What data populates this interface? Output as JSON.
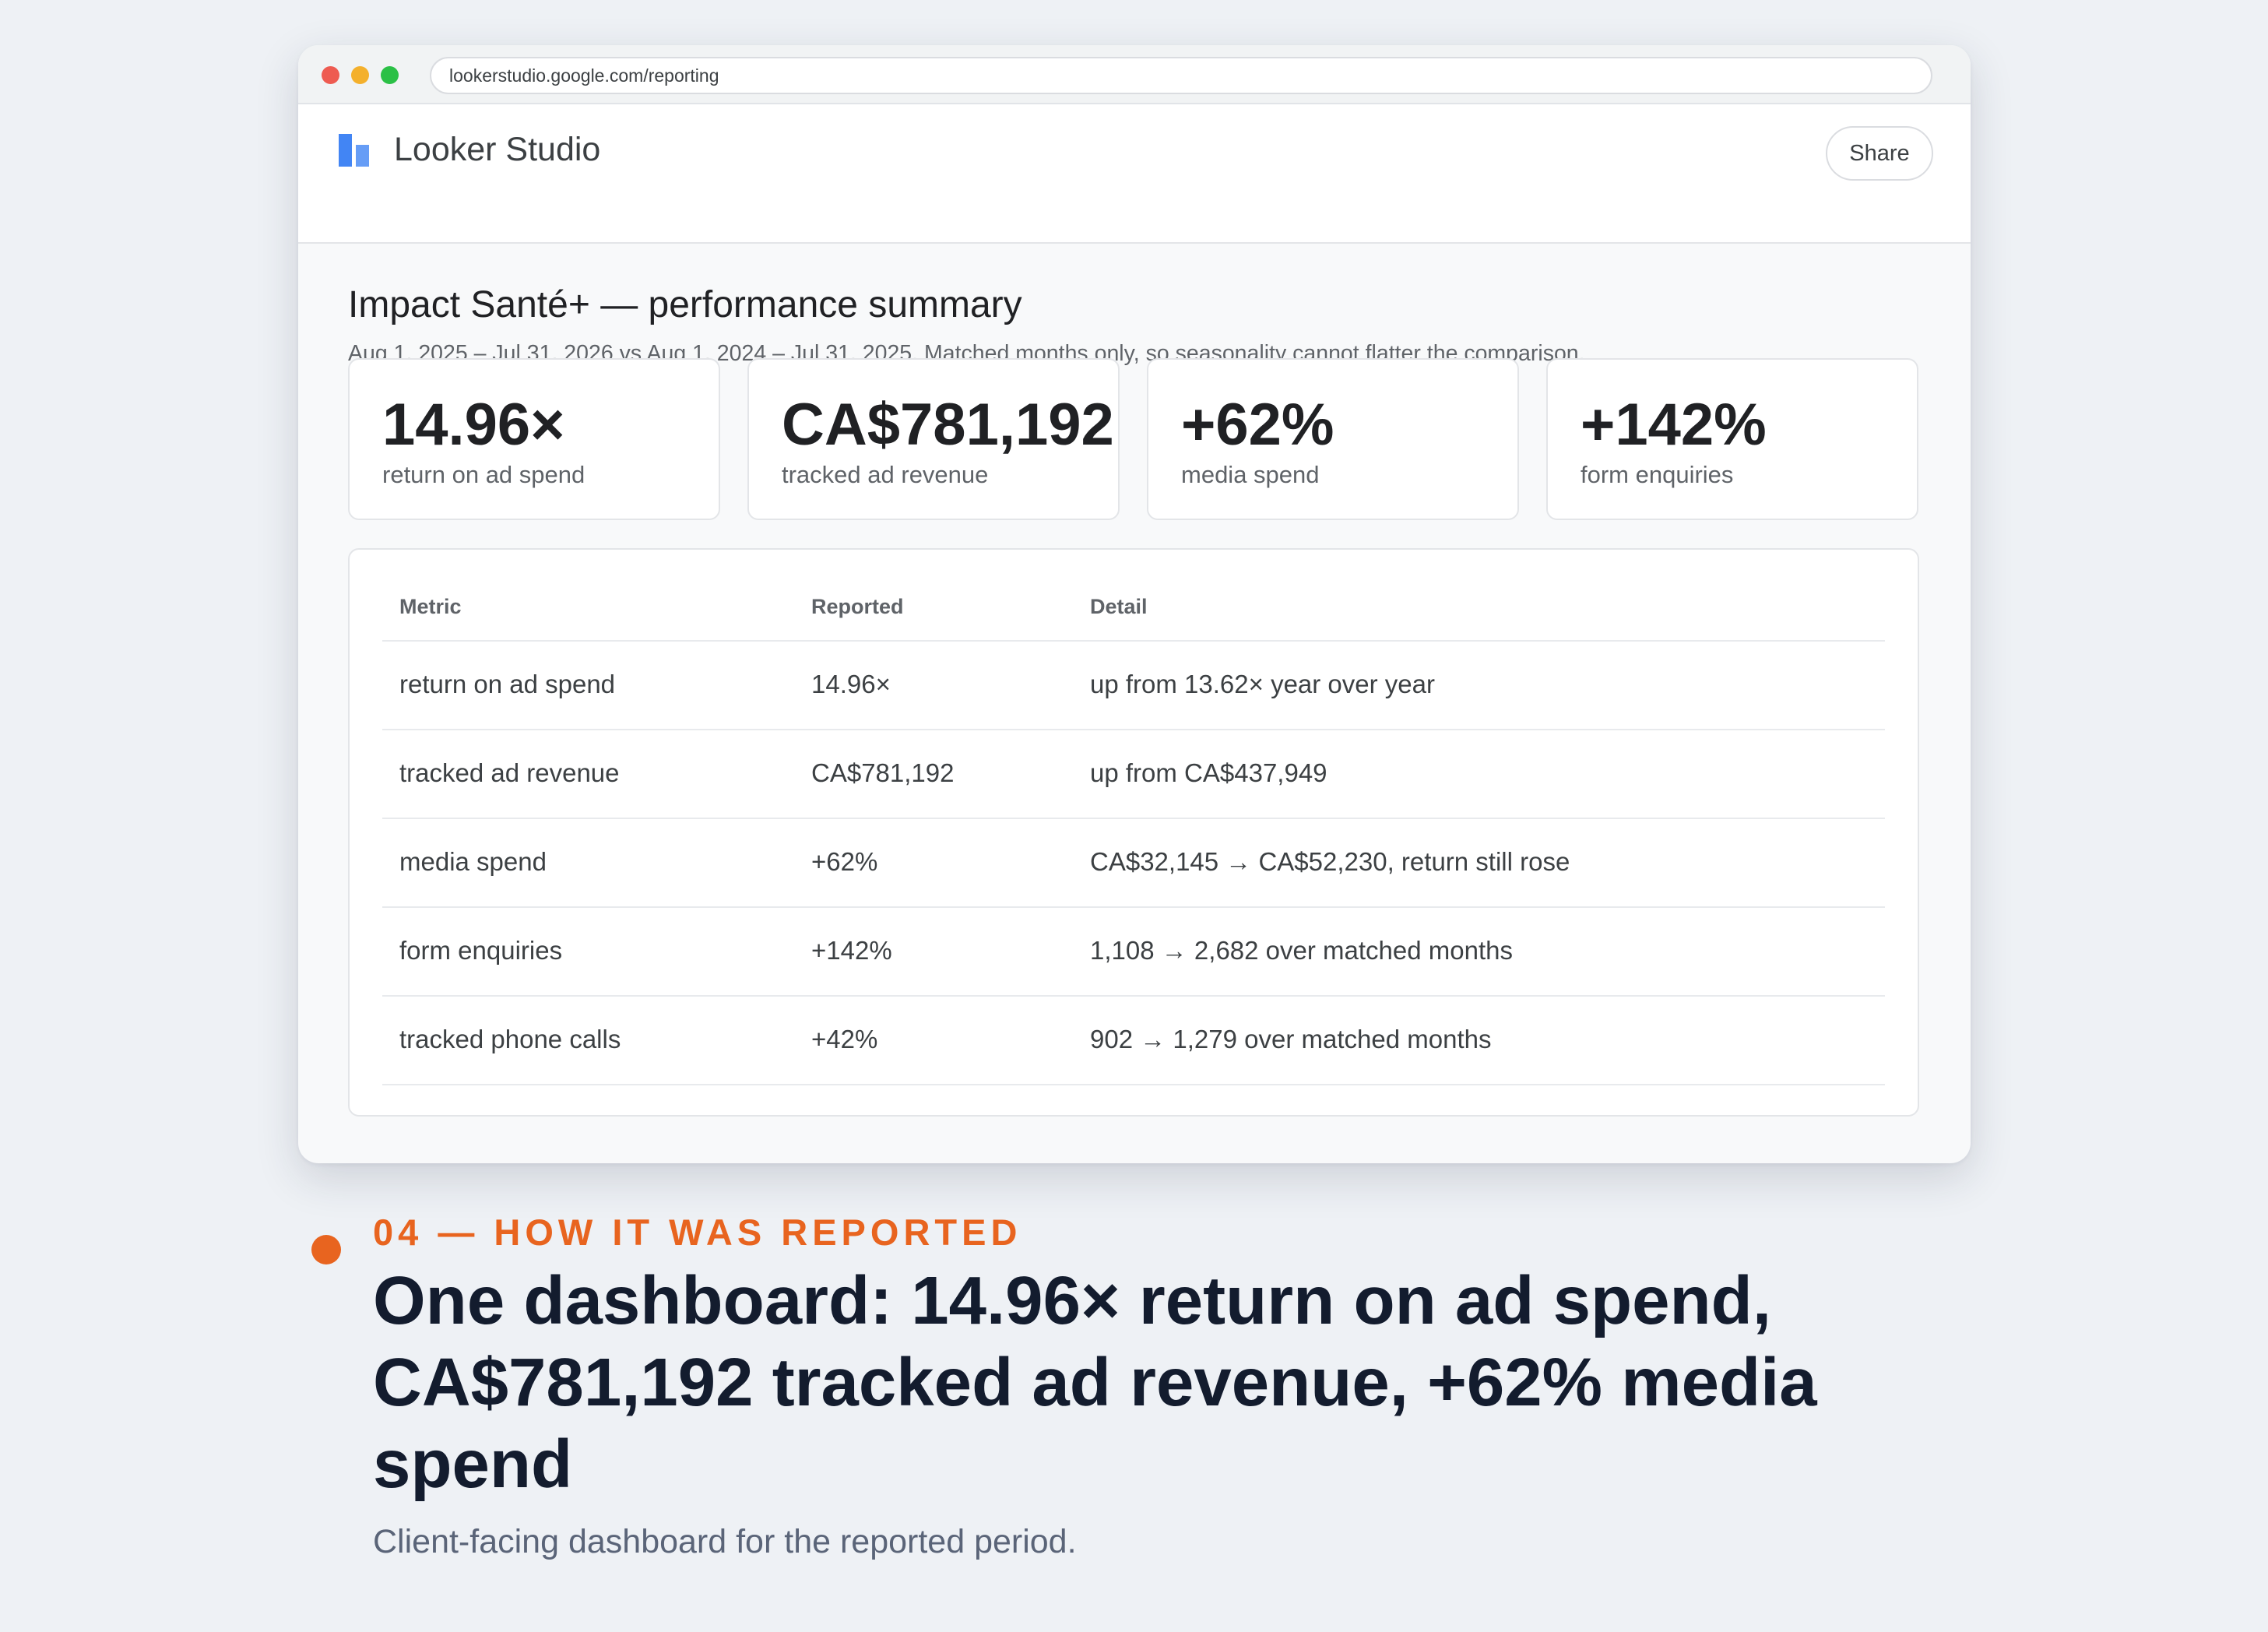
{
  "browser": {
    "url": "lookerstudio.google.com/reporting",
    "traffic_light_colors": [
      "#ee5b51",
      "#f4b02c",
      "#2bc046"
    ]
  },
  "app": {
    "name": "Looker Studio",
    "share_label": "Share",
    "brand_color": "#4285f4"
  },
  "report": {
    "title": "Impact Santé+ — performance summary",
    "subtitle": "Aug 1, 2025 – Jul 31, 2026 vs Aug 1, 2024 – Jul 31, 2025. Matched months only, so seasonality cannot flatter the comparison."
  },
  "kpis": [
    {
      "value": "14.96×",
      "label": "return on ad spend"
    },
    {
      "value": "CA$781,192",
      "label": "tracked ad revenue"
    },
    {
      "value": "+62%",
      "label": "media spend"
    },
    {
      "value": "+142%",
      "label": "form enquiries"
    }
  ],
  "table": {
    "headers": [
      "Metric",
      "Reported",
      "Detail"
    ],
    "rows": [
      [
        "return on ad spend",
        "14.96×",
        "up from 13.62× year over year"
      ],
      [
        "tracked ad revenue",
        "CA$781,192",
        "up from CA$437,949"
      ],
      [
        "media spend",
        "+62%",
        "CA$32,145 → CA$52,230, return still rose"
      ],
      [
        "form enquiries",
        "+142%",
        "1,108 → 2,682 over matched months"
      ],
      [
        "tracked phone calls",
        "+42%",
        "902 → 1,279 over matched months"
      ]
    ]
  },
  "caption": {
    "eyebrow": "04 — HOW IT WAS REPORTED",
    "headline": "One dashboard: 14.96× return on ad spend, CA$781,192 tracked ad revenue, +62% media spend",
    "subtext": "Client-facing dashboard for the reported period.",
    "accent_color": "#e8641f"
  }
}
